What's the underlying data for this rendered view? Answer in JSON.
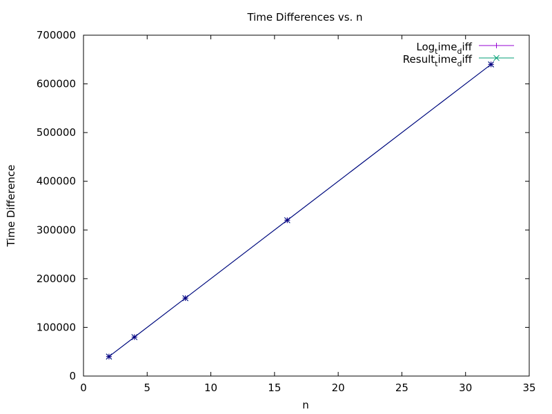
{
  "chart_data": {
    "type": "line",
    "title": "Time Differences vs. n",
    "xlabel": "n",
    "ylabel": "Time Difference",
    "xlim": [
      0,
      35
    ],
    "ylim": [
      0,
      700000
    ],
    "xticks": [
      0,
      5,
      10,
      15,
      20,
      25,
      30,
      35
    ],
    "yticks": [
      0,
      100000,
      200000,
      300000,
      400000,
      500000,
      600000,
      700000
    ],
    "grid": false,
    "legend_position": "top-right",
    "series": [
      {
        "name": "Log_time_diff",
        "legend_parts": {
          "base": "Log",
          "sub1": "t",
          "mid": "ime",
          "sub2": "d",
          "tail": "iff"
        },
        "color": "#9400d3",
        "marker": "plus",
        "x": [
          2,
          4,
          8,
          16,
          32
        ],
        "y": [
          40000,
          80000,
          160000,
          320000,
          640000
        ]
      },
      {
        "name": "Result_time_diff",
        "legend_parts": {
          "base": "Result",
          "sub1": "t",
          "mid": "ime",
          "sub2": "d",
          "tail": "iff"
        },
        "color": "#009e73",
        "marker": "cross",
        "x": [
          2,
          4,
          8,
          16,
          32
        ],
        "y": [
          40000,
          80000,
          160000,
          320000,
          640000
        ]
      }
    ],
    "overlay_color": "#000080"
  }
}
